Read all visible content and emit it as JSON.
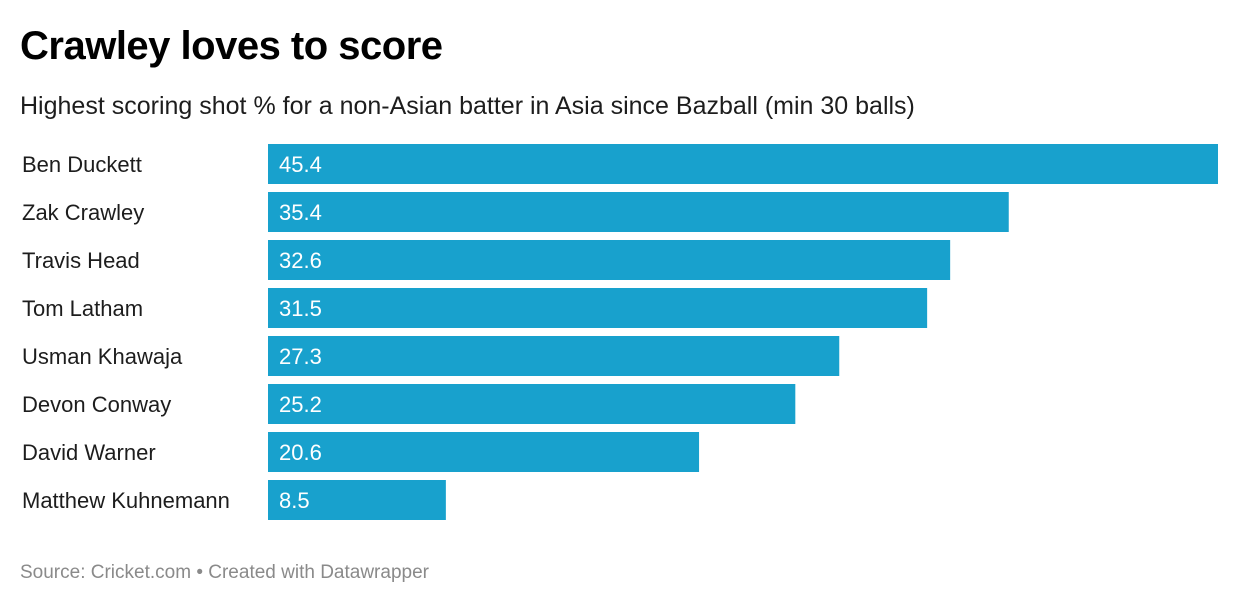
{
  "header": {
    "title": "Crawley loves to score",
    "subtitle": "Highest scoring shot % for a non-Asian batter in Asia since Bazball (min 30 balls)"
  },
  "footer": {
    "source_text": "Source: Cricket.com • Created with Datawrapper"
  },
  "colors": {
    "bar": "#18a1cd",
    "value_label": "#ffffff",
    "category_label": "#1d1d1d"
  },
  "chart_data": {
    "type": "bar",
    "orientation": "horizontal",
    "title": "Crawley loves to score",
    "subtitle": "Highest scoring shot % for a non-Asian batter in Asia since Bazball (min 30 balls)",
    "categories": [
      "Ben Duckett",
      "Zak Crawley",
      "Travis Head",
      "Tom Latham",
      "Usman Khawaja",
      "Devon Conway",
      "David Warner",
      "Matthew Kuhnemann"
    ],
    "values": [
      45.4,
      35.4,
      32.6,
      31.5,
      27.3,
      25.2,
      20.6,
      8.5
    ],
    "xlabel": "",
    "ylabel": "",
    "xlim": [
      0,
      45.4
    ],
    "grid": false,
    "legend": "none",
    "data_labels": "inside-left"
  }
}
